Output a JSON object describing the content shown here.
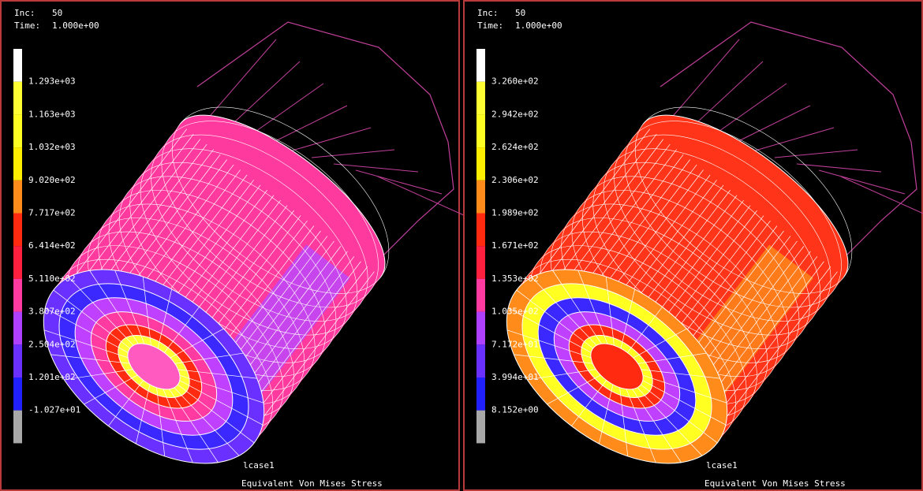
{
  "panels": [
    {
      "inc_label": "Inc:",
      "inc": 50,
      "time_label": "Time:",
      "time": "1.000e+00",
      "legend": [
        "1.293e+03",
        "1.163e+03",
        "1.032e+03",
        "9.020e+02",
        "7.717e+02",
        "6.414e+02",
        "5.110e+02",
        "3.807e+02",
        "2.504e+02",
        "1.201e+02",
        "-1.027e+01"
      ],
      "case": "lcase1",
      "title": "Equivalent Von Mises Stress"
    },
    {
      "inc_label": "Inc:",
      "inc": 50,
      "time_label": "Time:",
      "time": "1.000e+00",
      "legend": [
        "3.260e+02",
        "2.942e+02",
        "2.624e+02",
        "2.306e+02",
        "1.989e+02",
        "1.671e+02",
        "1.353e+02",
        "1.035e+02",
        "7.172e+01",
        "3.994e+01",
        "8.152e+00"
      ],
      "case": "lcase1",
      "title": "Equivalent Von Mises Stress"
    }
  ]
}
